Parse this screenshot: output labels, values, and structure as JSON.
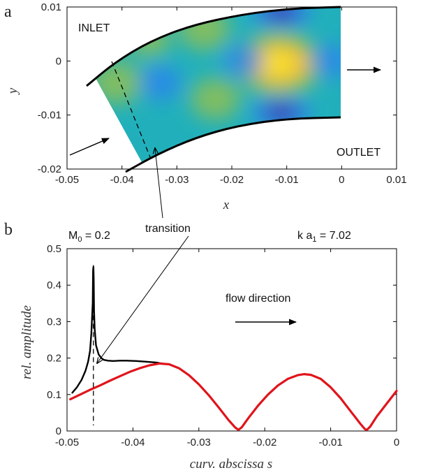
{
  "panels": {
    "a": {
      "label": "a",
      "xlabel": "x",
      "ylabel": "y",
      "x_ticks": [
        "-0.05",
        "-0.04",
        "-0.03",
        "-0.02",
        "-0.01",
        "0",
        "0.01"
      ],
      "y_ticks": [
        "0.01",
        "0",
        "-0.01",
        "-0.02"
      ],
      "inlet_label": "INLET",
      "outlet_label": "OUTLET",
      "colormap": [
        "#3e26a8",
        "#2d83f0",
        "#21b0bb",
        "#8abf5a",
        "#f4b93b",
        "#f7e625"
      ]
    },
    "b": {
      "label": "b",
      "mach_label": "M",
      "mach_sub": "0",
      "mach_value": " = 0.2",
      "ka_label": "k a",
      "ka_sub": "1",
      "ka_value": " = 7.02",
      "transition_label": "transition",
      "flow_label": "flow direction",
      "xlabel": "curv. abscissa s",
      "ylabel": "rel. amplitude",
      "x_ticks": [
        "-0.05",
        "-0.04",
        "-0.03",
        "-0.02",
        "-0.01",
        "0"
      ],
      "y_ticks": [
        "0.5",
        "0.4",
        "0.3",
        "0.2",
        "0.1",
        "0"
      ]
    }
  },
  "chart_data": [
    {
      "type": "heatmap",
      "panel": "a",
      "title": "",
      "xlabel": "x",
      "ylabel": "y",
      "xlim": [
        -0.05,
        0.01
      ],
      "ylim": [
        -0.02,
        0.01
      ],
      "description_of_field": "pressure amplitude in curved duct; bright maximum near x=-0.011, y=-0.001; dark minima near x=-0.011, y=0.009 and x=-0.011, y=-0.009",
      "blobs": [
        {
          "x": -0.0115,
          "y": -0.0005,
          "v": 1.0
        },
        {
          "x": -0.025,
          "y": 0.006,
          "v": 0.6
        },
        {
          "x": -0.023,
          "y": -0.007,
          "v": 0.55
        },
        {
          "x": -0.041,
          "y": -0.004,
          "v": 0.6
        },
        {
          "x": -0.035,
          "y": 0.004,
          "v": 0.35
        },
        {
          "x": -0.011,
          "y": 0.009,
          "v": -0.9
        },
        {
          "x": -0.011,
          "y": -0.0095,
          "v": -0.9
        },
        {
          "x": -0.033,
          "y": -0.004,
          "v": -0.35
        },
        {
          "x": -0.018,
          "y": 0.0,
          "v": -0.3
        },
        {
          "x": -0.002,
          "y": 0.0,
          "v": -0.3
        }
      ]
    },
    {
      "type": "line",
      "panel": "b",
      "title": "",
      "xlabel": "curv. abscissa s",
      "ylabel": "rel. amplitude",
      "xlim": [
        -0.05,
        0
      ],
      "ylim": [
        0,
        0.5
      ],
      "transition_s": -0.046,
      "series": [
        {
          "color": "#000000",
          "x": [
            -0.0492,
            -0.0485,
            -0.0478,
            -0.0472,
            -0.0468,
            -0.0465,
            -0.0463,
            -0.0461,
            -0.04605,
            -0.046,
            -0.04595,
            -0.0459,
            -0.0458,
            -0.0456,
            -0.0452,
            -0.0448,
            -0.0444,
            -0.0438,
            -0.043,
            -0.042,
            -0.041,
            -0.0395,
            -0.038,
            -0.0365,
            -0.0355
          ],
          "values": [
            0.105,
            0.12,
            0.14,
            0.165,
            0.19,
            0.22,
            0.27,
            0.35,
            0.44,
            0.45,
            0.42,
            0.33,
            0.28,
            0.235,
            0.21,
            0.2,
            0.195,
            0.193,
            0.192,
            0.193,
            0.193,
            0.192,
            0.19,
            0.188,
            0.185
          ]
        },
        {
          "color": "#e0141b",
          "x": [
            -0.0495,
            -0.048,
            -0.0465,
            -0.045,
            -0.0435,
            -0.042,
            -0.0405,
            -0.039,
            -0.0375,
            -0.036,
            -0.0345,
            -0.033,
            -0.0315,
            -0.03,
            -0.0285,
            -0.027,
            -0.0255,
            -0.0245,
            -0.024,
            -0.0235,
            -0.0225,
            -0.021,
            -0.0195,
            -0.018,
            -0.0165,
            -0.015,
            -0.014,
            -0.013,
            -0.0115,
            -0.01,
            -0.0085,
            -0.007,
            -0.0055,
            -0.0048,
            -0.0045,
            -0.004,
            -0.003,
            -0.0015,
            0.0
          ],
          "values": [
            0.087,
            0.1,
            0.113,
            0.125,
            0.138,
            0.15,
            0.162,
            0.172,
            0.18,
            0.185,
            0.183,
            0.172,
            0.153,
            0.128,
            0.098,
            0.065,
            0.03,
            0.01,
            0.003,
            0.01,
            0.035,
            0.07,
            0.1,
            0.125,
            0.143,
            0.153,
            0.156,
            0.154,
            0.143,
            0.12,
            0.09,
            0.055,
            0.02,
            0.005,
            0.003,
            0.012,
            0.04,
            0.075,
            0.11
          ]
        }
      ]
    }
  ]
}
